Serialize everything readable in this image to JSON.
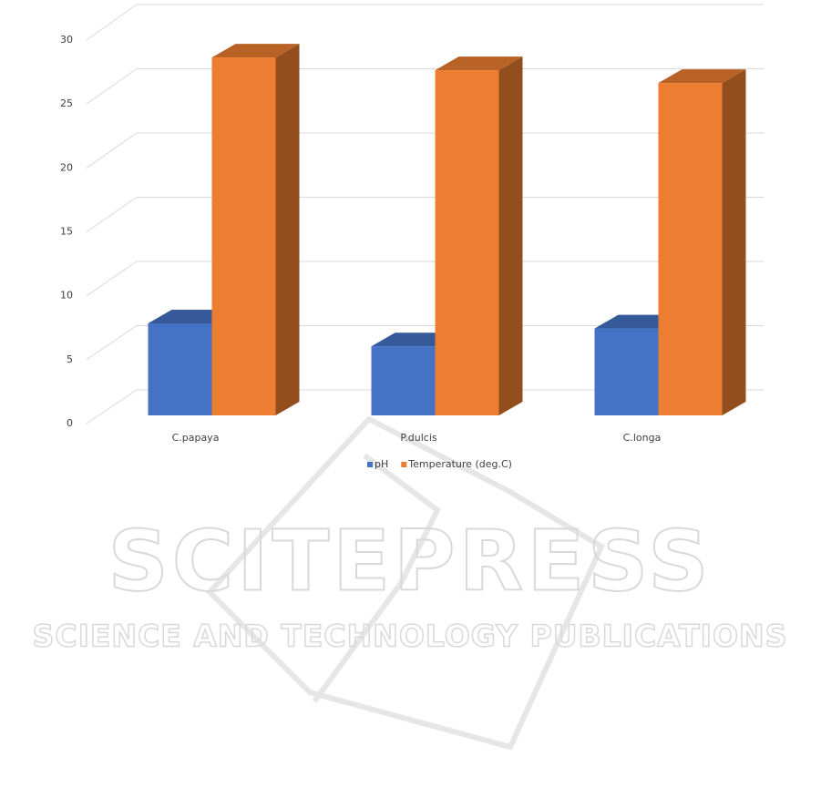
{
  "chart_data": {
    "type": "bar3d",
    "categories": [
      "C.papaya",
      "P.dulcis",
      "C.longa"
    ],
    "series": [
      {
        "name": "pH",
        "color": "#4472c4",
        "values": [
          7.2,
          5.4,
          6.8
        ]
      },
      {
        "name": "Temperature (deg.C)",
        "color": "#ed7d31",
        "values": [
          28,
          27,
          26
        ]
      }
    ],
    "ylim": [
      0,
      30
    ],
    "yticks": [
      0,
      5,
      10,
      15,
      20,
      25,
      30
    ],
    "grid": true,
    "legend": "bottom"
  },
  "watermark": {
    "title": "SCITEPRESS",
    "subtitle": "SCIENCE AND TECHNOLOGY PUBLICATIONS"
  }
}
